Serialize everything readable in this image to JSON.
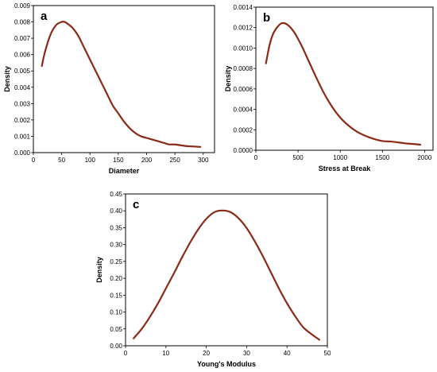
{
  "colors": {
    "curve": "#8b2a16",
    "axis": "#000000",
    "background": "#ffffff"
  },
  "chart_data": [
    {
      "id": "a",
      "panel_label": "a",
      "type": "line",
      "title": "",
      "xlabel": "Diameter",
      "ylabel": "Density",
      "xlim": [
        0,
        320
      ],
      "ylim": [
        0,
        0.009
      ],
      "xticks": [
        0,
        50,
        100,
        150,
        200,
        250,
        300
      ],
      "yticks": [
        0.0,
        0.001,
        0.002,
        0.003,
        0.004,
        0.005,
        0.006,
        0.007,
        0.008,
        0.009
      ],
      "ytick_labels": [
        "0.000",
        "0.001",
        "0.002",
        "0.003",
        "0.004",
        "0.005",
        "0.006",
        "0.007",
        "0.008",
        "0.009"
      ],
      "grid": false,
      "series": [
        {
          "x": [
            15,
            20,
            30,
            40,
            50,
            55,
            60,
            70,
            80,
            90,
            100,
            110,
            120,
            130,
            140,
            150,
            160,
            170,
            180,
            190,
            200,
            210,
            220,
            230,
            240,
            250,
            260,
            270,
            280,
            295
          ],
          "y": [
            0.0053,
            0.0061,
            0.0072,
            0.0078,
            0.008,
            0.008,
            0.0079,
            0.0076,
            0.0071,
            0.0064,
            0.0057,
            0.005,
            0.0043,
            0.0036,
            0.0029,
            0.0024,
            0.0019,
            0.0015,
            0.0012,
            0.001,
            0.0009,
            0.0008,
            0.0007,
            0.0006,
            0.0005,
            0.0005,
            0.00045,
            0.0004,
            0.00038,
            0.00035
          ]
        }
      ]
    },
    {
      "id": "b",
      "panel_label": "b",
      "type": "line",
      "title": "",
      "xlabel": "Stress at Break",
      "ylabel": "Density",
      "xlim": [
        0,
        2100
      ],
      "ylim": [
        0,
        0.0014
      ],
      "xticks": [
        0,
        500,
        1000,
        1500,
        2000
      ],
      "yticks": [
        0.0,
        0.0002,
        0.0004,
        0.0006,
        0.0008,
        0.001,
        0.0012,
        0.0014
      ],
      "ytick_labels": [
        "0.0000",
        "0.0002",
        "0.0004",
        "0.0006",
        "0.0008",
        "0.0010",
        "0.0012",
        "0.0014"
      ],
      "grid": false,
      "series": [
        {
          "x": [
            120,
            160,
            200,
            250,
            300,
            350,
            400,
            450,
            500,
            550,
            600,
            700,
            800,
            900,
            1000,
            1100,
            1200,
            1300,
            1400,
            1500,
            1600,
            1700,
            1800,
            1950
          ],
          "y": [
            0.00085,
            0.00102,
            0.00113,
            0.0012,
            0.00124,
            0.00124,
            0.00121,
            0.00116,
            0.00109,
            0.00101,
            0.00092,
            0.00074,
            0.00057,
            0.00043,
            0.00032,
            0.00024,
            0.00018,
            0.00014,
            0.00011,
            9e-05,
            8.5e-05,
            7.5e-05,
            6.5e-05,
            5.5e-05
          ]
        }
      ]
    },
    {
      "id": "c",
      "panel_label": "c",
      "type": "line",
      "title": "",
      "xlabel": "Young's Modulus",
      "ylabel": "Density",
      "xlim": [
        0,
        50
      ],
      "ylim": [
        0,
        0.45
      ],
      "xticks": [
        0,
        10,
        20,
        30,
        40,
        50
      ],
      "yticks": [
        0.0,
        0.05,
        0.1,
        0.15,
        0.2,
        0.25,
        0.3,
        0.35,
        0.4,
        0.45
      ],
      "ytick_labels": [
        "0.00",
        "0.05",
        "0.10",
        "0.15",
        "0.20",
        "0.25",
        "0.30",
        "0.35",
        "0.40",
        "0.45"
      ],
      "grid": false,
      "series": [
        {
          "x": [
            2,
            4,
            6,
            8,
            10,
            12,
            14,
            16,
            18,
            20,
            22,
            24,
            26,
            28,
            30,
            32,
            34,
            36,
            38,
            40,
            42,
            44,
            46,
            48
          ],
          "y": [
            0.022,
            0.05,
            0.085,
            0.125,
            0.17,
            0.215,
            0.262,
            0.306,
            0.345,
            0.376,
            0.396,
            0.401,
            0.396,
            0.378,
            0.349,
            0.31,
            0.266,
            0.218,
            0.17,
            0.126,
            0.088,
            0.055,
            0.035,
            0.018
          ]
        }
      ]
    }
  ]
}
